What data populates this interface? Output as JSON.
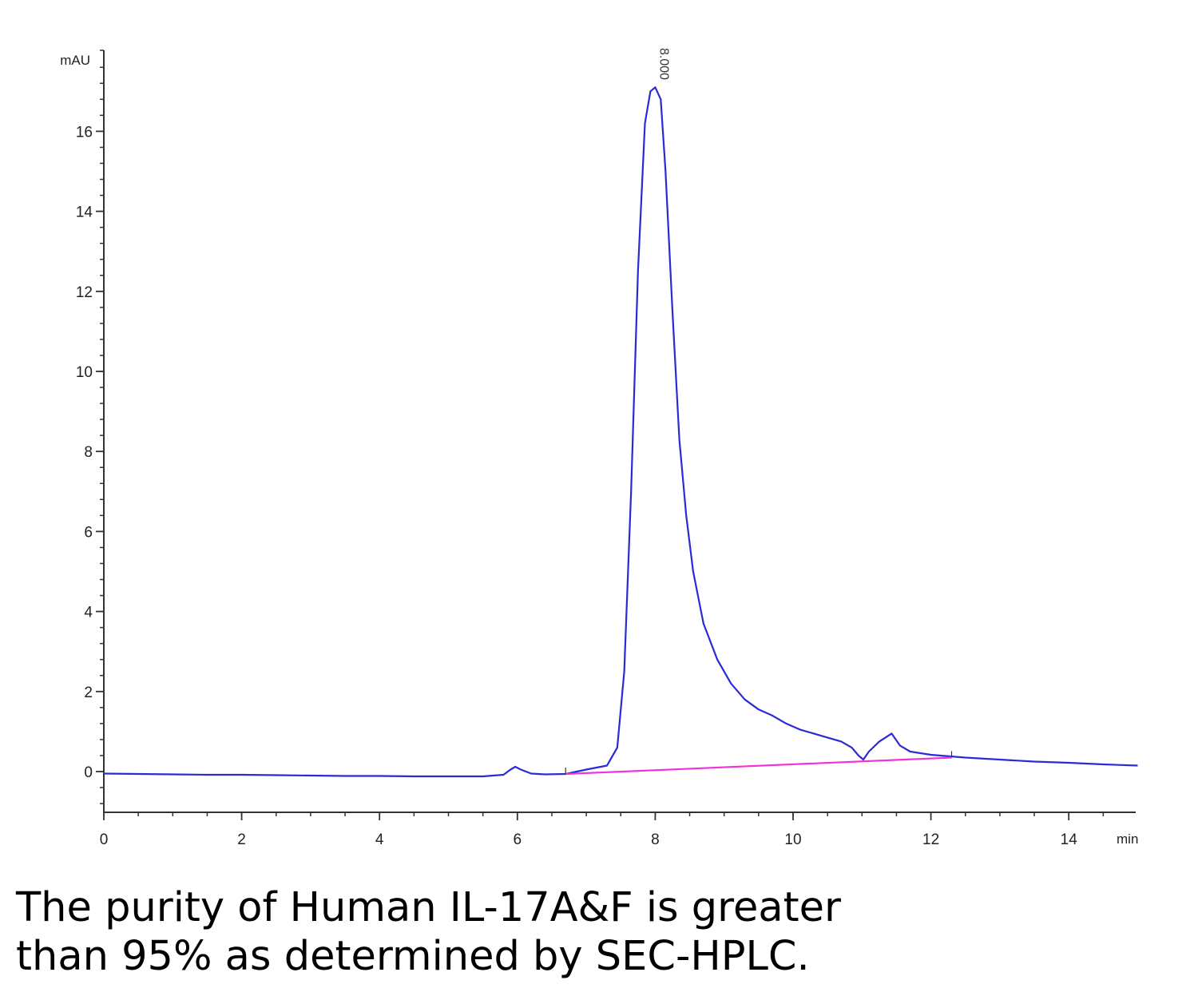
{
  "chart_data": {
    "type": "line",
    "xlabel": "min",
    "ylabel": "mAU",
    "xlim": [
      0,
      15
    ],
    "ylim": [
      -1,
      17.9
    ],
    "x_ticks": [
      0,
      2,
      4,
      6,
      8,
      10,
      12,
      14
    ],
    "y_ticks": [
      0,
      2,
      4,
      6,
      8,
      10,
      12,
      14,
      16
    ],
    "grid": false,
    "peak_label": "8.000",
    "peak_label_x": 8.0,
    "series": [
      {
        "color": "#2b2bd6",
        "x": [
          0,
          0.5,
          1,
          1.5,
          2,
          2.5,
          3,
          3.5,
          4,
          4.5,
          5,
          5.5,
          5.8,
          5.9,
          5.97,
          6.05,
          6.2,
          6.4,
          6.7,
          7.0,
          7.3,
          7.45,
          7.55,
          7.65,
          7.75,
          7.85,
          7.93,
          8.0,
          8.08,
          8.15,
          8.25,
          8.35,
          8.45,
          8.55,
          8.7,
          8.9,
          9.1,
          9.3,
          9.5,
          9.7,
          9.9,
          10.1,
          10.4,
          10.7,
          10.85,
          10.95,
          11.02,
          11.1,
          11.25,
          11.43,
          11.55,
          11.7,
          12.0,
          12.5,
          13.0,
          13.5,
          14.0,
          14.5,
          15.0
        ],
        "y": [
          -0.05,
          -0.06,
          -0.07,
          -0.08,
          -0.08,
          -0.09,
          -0.1,
          -0.11,
          -0.11,
          -0.12,
          -0.12,
          -0.12,
          -0.08,
          0.05,
          0.12,
          0.05,
          -0.05,
          -0.07,
          -0.06,
          0.05,
          0.15,
          0.6,
          2.5,
          7.0,
          12.5,
          16.2,
          17.0,
          17.1,
          16.8,
          15.0,
          11.5,
          8.3,
          6.4,
          5.0,
          3.7,
          2.8,
          2.2,
          1.8,
          1.55,
          1.4,
          1.2,
          1.05,
          0.9,
          0.75,
          0.6,
          0.4,
          0.3,
          0.5,
          0.75,
          0.95,
          0.65,
          0.5,
          0.42,
          0.35,
          0.3,
          0.25,
          0.22,
          0.18,
          0.15
        ]
      },
      {
        "color": "#ee33dd",
        "x": [
          6.7,
          12.3
        ],
        "y": [
          -0.06,
          0.35
        ]
      }
    ]
  },
  "caption": {
    "line1": "The purity of Human IL-17A&F is greater",
    "line2": "than 95% as determined by SEC-HPLC."
  }
}
